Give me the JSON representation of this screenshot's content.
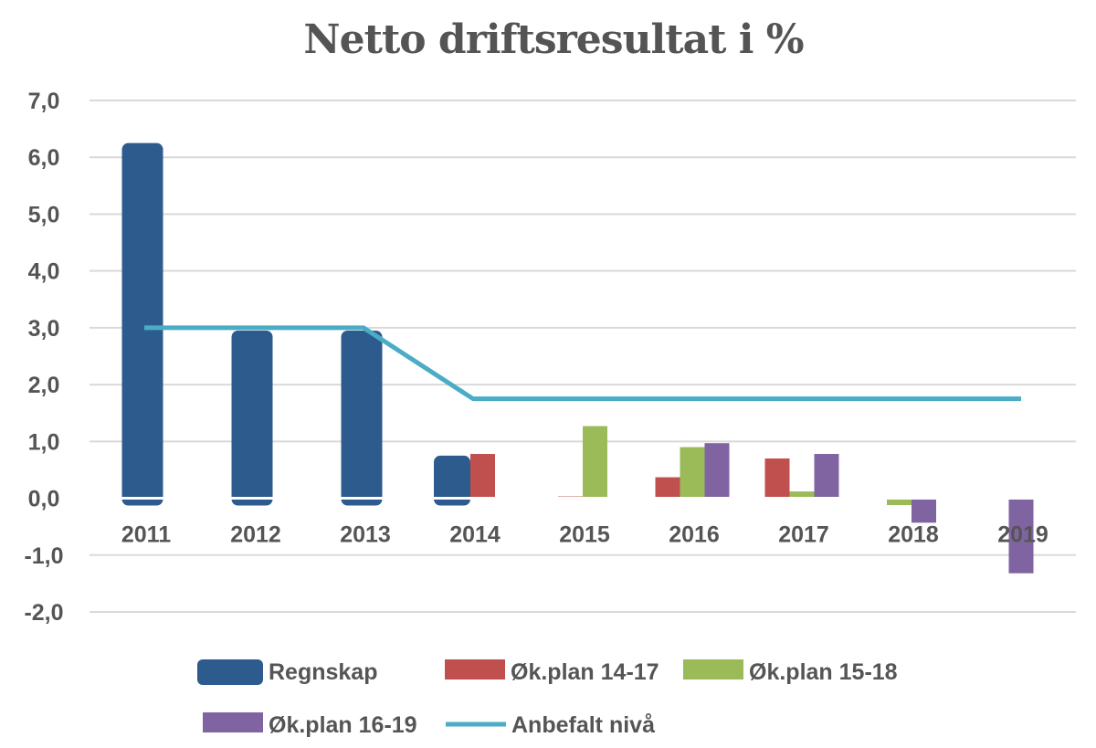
{
  "chart_data": {
    "type": "bar",
    "title": "Netto driftsresultat i %",
    "xlabel": "",
    "ylabel": "",
    "categories": [
      "2011",
      "2012",
      "2013",
      "2014",
      "2015",
      "2016",
      "2017",
      "2018",
      "2019"
    ],
    "ylim": [
      -2.0,
      7.0
    ],
    "yticks": [
      7.0,
      6.0,
      5.0,
      4.0,
      3.0,
      2.0,
      1.0,
      0.0,
      -1.0,
      -2.0
    ],
    "ytick_labels": [
      "7,0",
      "6,0",
      "5,0",
      "4,0",
      "3,0",
      "2,0",
      "1,0",
      "0,0",
      "-1,0",
      "-2,0"
    ],
    "grid": true,
    "legend_position": "bottom",
    "series": [
      {
        "name": "Regnskap",
        "type": "bar",
        "color": "#2e5b8e",
        "values": [
          6.25,
          2.95,
          2.95,
          0.75,
          null,
          null,
          null,
          null,
          null
        ]
      },
      {
        "name": "Øk.plan 14-17",
        "type": "bar",
        "color": "#c0504d",
        "values": [
          null,
          null,
          null,
          0.78,
          0.03,
          0.37,
          0.7,
          null,
          null
        ]
      },
      {
        "name": "Øk.plan 15-18",
        "type": "bar",
        "color": "#9bbb59",
        "values": [
          null,
          null,
          null,
          null,
          1.27,
          0.9,
          0.12,
          -0.12,
          null
        ]
      },
      {
        "name": "Øk.plan 16-19",
        "type": "bar",
        "color": "#8064a2",
        "values": [
          null,
          null,
          null,
          null,
          null,
          0.97,
          0.78,
          -0.43,
          -1.32
        ]
      },
      {
        "name": "Anbefalt nivå",
        "type": "line",
        "color": "#4bacc6",
        "values": [
          3.0,
          3.0,
          3.0,
          1.75,
          1.75,
          1.75,
          1.75,
          1.75,
          1.75
        ]
      }
    ]
  }
}
